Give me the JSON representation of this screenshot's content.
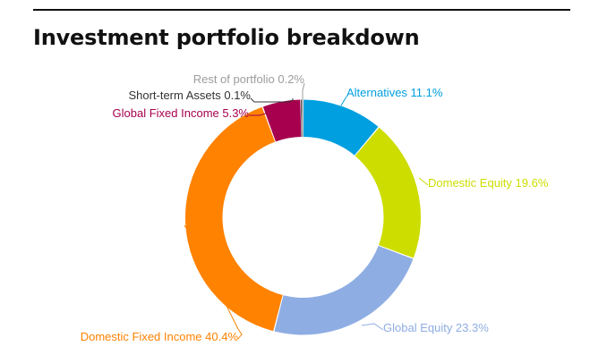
{
  "title": "Investment portfolio breakdown",
  "chart_data": {
    "type": "pie",
    "donut": true,
    "title": "Investment portfolio breakdown",
    "slices": [
      {
        "name": "Alternatives",
        "value": 11.1,
        "label": "Alternatives 11.1%",
        "color": "#009fdf"
      },
      {
        "name": "Domestic Equity",
        "value": 19.6,
        "label": "Domestic Equity 19.6%",
        "color": "#cddd00"
      },
      {
        "name": "Global Equity",
        "value": 23.3,
        "label": "Global Equity 23.3%",
        "color": "#8eade3"
      },
      {
        "name": "Domestic Fixed Income",
        "value": 40.4,
        "label": "Domestic Fixed Income 40.4%",
        "color": "#ff8200"
      },
      {
        "name": "Global Fixed Income",
        "value": 5.3,
        "label": "Global Fixed Income 5.3%",
        "color": "#a6004e"
      },
      {
        "name": "Short-term Assets",
        "value": 0.1,
        "label": "Short-term Assets 0.1%",
        "color": "#333333"
      },
      {
        "name": "Rest of portfolio",
        "value": 0.2,
        "label": "Rest of portfolio 0.2%",
        "color": "#9c9c9c"
      }
    ],
    "units": "%",
    "legend": "none",
    "label_placement": "outside with leader lines"
  }
}
